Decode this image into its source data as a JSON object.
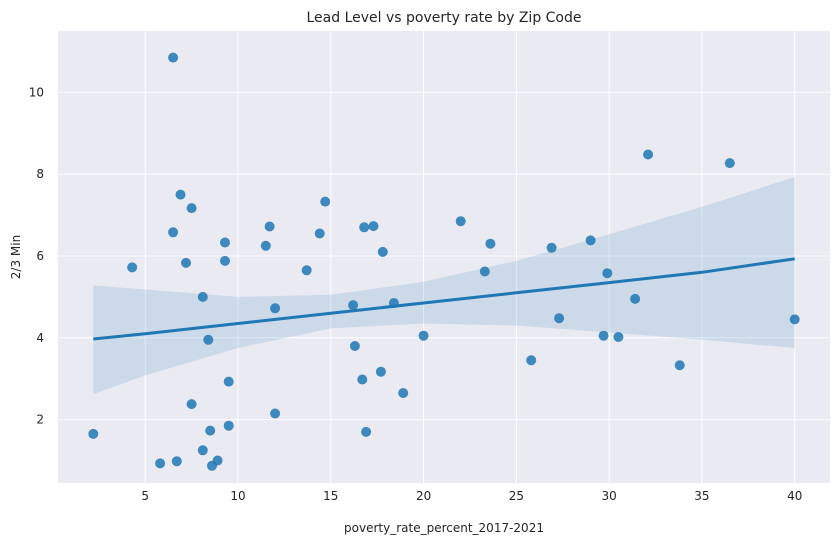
{
  "chart_data": {
    "type": "scatter",
    "title": "Lead Level vs poverty rate by Zip Code",
    "xlabel": "poverty_rate_percent_2017-2021",
    "ylabel": "2/3 Min",
    "xlim": [
      0.3,
      41.9
    ],
    "ylim": [
      0.45,
      11.5
    ],
    "x_ticks": [
      5,
      10,
      15,
      20,
      25,
      30,
      35,
      40
    ],
    "y_ticks": [
      2,
      4,
      6,
      8,
      10
    ],
    "grid": true,
    "background": "#eaeaf2",
    "point_color": "#1f77b4",
    "line_color": "#1f77b4",
    "band_color": "#1f77b4",
    "points": [
      {
        "x": 2.2,
        "y": 1.65
      },
      {
        "x": 4.3,
        "y": 5.72
      },
      {
        "x": 5.8,
        "y": 0.93
      },
      {
        "x": 6.5,
        "y": 10.85
      },
      {
        "x": 6.5,
        "y": 6.58
      },
      {
        "x": 6.7,
        "y": 0.98
      },
      {
        "x": 6.9,
        "y": 7.5
      },
      {
        "x": 7.2,
        "y": 5.83
      },
      {
        "x": 7.5,
        "y": 7.17
      },
      {
        "x": 7.5,
        "y": 2.38
      },
      {
        "x": 8.1,
        "y": 5.0
      },
      {
        "x": 8.1,
        "y": 1.25
      },
      {
        "x": 8.4,
        "y": 3.95
      },
      {
        "x": 8.5,
        "y": 1.73
      },
      {
        "x": 8.6,
        "y": 0.87
      },
      {
        "x": 8.9,
        "y": 1.0
      },
      {
        "x": 9.3,
        "y": 6.33
      },
      {
        "x": 9.3,
        "y": 5.88
      },
      {
        "x": 9.5,
        "y": 2.93
      },
      {
        "x": 9.5,
        "y": 1.85
      },
      {
        "x": 11.5,
        "y": 6.25
      },
      {
        "x": 11.7,
        "y": 6.72
      },
      {
        "x": 12.0,
        "y": 4.72
      },
      {
        "x": 12.0,
        "y": 2.15
      },
      {
        "x": 13.7,
        "y": 5.65
      },
      {
        "x": 14.4,
        "y": 6.55
      },
      {
        "x": 14.7,
        "y": 7.33
      },
      {
        "x": 16.2,
        "y": 4.8
      },
      {
        "x": 16.3,
        "y": 3.8
      },
      {
        "x": 16.7,
        "y": 2.98
      },
      {
        "x": 16.8,
        "y": 6.7
      },
      {
        "x": 16.9,
        "y": 1.7
      },
      {
        "x": 17.3,
        "y": 6.73
      },
      {
        "x": 17.7,
        "y": 3.17
      },
      {
        "x": 17.8,
        "y": 6.1
      },
      {
        "x": 18.4,
        "y": 4.85
      },
      {
        "x": 18.9,
        "y": 2.65
      },
      {
        "x": 20.0,
        "y": 4.05
      },
      {
        "x": 22.0,
        "y": 6.85
      },
      {
        "x": 23.3,
        "y": 5.62
      },
      {
        "x": 23.6,
        "y": 6.3
      },
      {
        "x": 25.8,
        "y": 3.45
      },
      {
        "x": 26.9,
        "y": 6.2
      },
      {
        "x": 27.3,
        "y": 4.48
      },
      {
        "x": 29.0,
        "y": 6.38
      },
      {
        "x": 29.7,
        "y": 4.05
      },
      {
        "x": 29.9,
        "y": 5.58
      },
      {
        "x": 30.5,
        "y": 4.02
      },
      {
        "x": 31.4,
        "y": 4.95
      },
      {
        "x": 32.1,
        "y": 8.48
      },
      {
        "x": 33.8,
        "y": 3.33
      },
      {
        "x": 36.5,
        "y": 8.27
      },
      {
        "x": 40.0,
        "y": 4.45
      }
    ],
    "regression": {
      "x": [
        2.2,
        5.0,
        10.0,
        15.0,
        20.0,
        25.0,
        30.0,
        35.0,
        40.0
      ],
      "y": [
        3.97,
        4.1,
        4.35,
        4.6,
        4.85,
        5.1,
        5.35,
        5.6,
        5.93
      ],
      "ci_lower": [
        2.62,
        3.08,
        3.75,
        4.23,
        4.35,
        4.3,
        4.13,
        3.95,
        3.75
      ],
      "ci_upper": [
        5.28,
        5.18,
        5.0,
        5.05,
        5.37,
        5.88,
        6.53,
        7.2,
        7.93
      ]
    }
  }
}
